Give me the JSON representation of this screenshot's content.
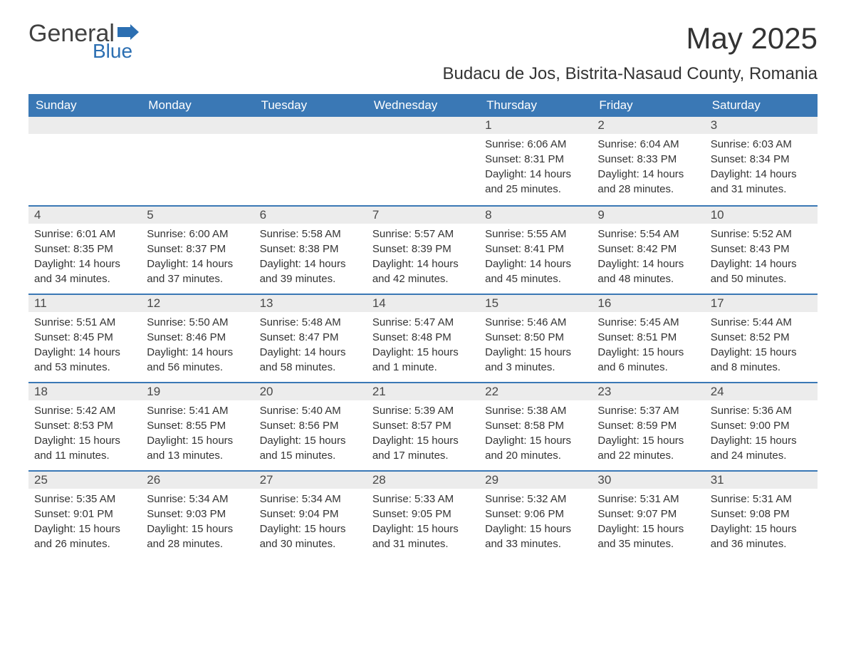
{
  "logo": {
    "text1": "General",
    "text2": "Blue"
  },
  "title": "May 2025",
  "subtitle": "Budacu de Jos, Bistrita-Nasaud County, Romania",
  "colors": {
    "header_bg": "#3a78b5",
    "header_text": "#ffffff",
    "daynum_bg": "#ececec",
    "body_text": "#333333",
    "week_border": "#3a78b5",
    "logo_general": "#414141",
    "logo_blue": "#2c6fb2",
    "background": "#ffffff"
  },
  "typography": {
    "title_fontsize": 42,
    "subtitle_fontsize": 24,
    "dow_fontsize": 17,
    "daynum_fontsize": 17,
    "body_fontsize": 15
  },
  "daysOfWeek": [
    "Sunday",
    "Monday",
    "Tuesday",
    "Wednesday",
    "Thursday",
    "Friday",
    "Saturday"
  ],
  "weeks": [
    [
      {
        "n": "",
        "sunrise": "",
        "sunset": "",
        "daylight": ""
      },
      {
        "n": "",
        "sunrise": "",
        "sunset": "",
        "daylight": ""
      },
      {
        "n": "",
        "sunrise": "",
        "sunset": "",
        "daylight": ""
      },
      {
        "n": "",
        "sunrise": "",
        "sunset": "",
        "daylight": ""
      },
      {
        "n": "1",
        "sunrise": "Sunrise: 6:06 AM",
        "sunset": "Sunset: 8:31 PM",
        "daylight": "Daylight: 14 hours and 25 minutes."
      },
      {
        "n": "2",
        "sunrise": "Sunrise: 6:04 AM",
        "sunset": "Sunset: 8:33 PM",
        "daylight": "Daylight: 14 hours and 28 minutes."
      },
      {
        "n": "3",
        "sunrise": "Sunrise: 6:03 AM",
        "sunset": "Sunset: 8:34 PM",
        "daylight": "Daylight: 14 hours and 31 minutes."
      }
    ],
    [
      {
        "n": "4",
        "sunrise": "Sunrise: 6:01 AM",
        "sunset": "Sunset: 8:35 PM",
        "daylight": "Daylight: 14 hours and 34 minutes."
      },
      {
        "n": "5",
        "sunrise": "Sunrise: 6:00 AM",
        "sunset": "Sunset: 8:37 PM",
        "daylight": "Daylight: 14 hours and 37 minutes."
      },
      {
        "n": "6",
        "sunrise": "Sunrise: 5:58 AM",
        "sunset": "Sunset: 8:38 PM",
        "daylight": "Daylight: 14 hours and 39 minutes."
      },
      {
        "n": "7",
        "sunrise": "Sunrise: 5:57 AM",
        "sunset": "Sunset: 8:39 PM",
        "daylight": "Daylight: 14 hours and 42 minutes."
      },
      {
        "n": "8",
        "sunrise": "Sunrise: 5:55 AM",
        "sunset": "Sunset: 8:41 PM",
        "daylight": "Daylight: 14 hours and 45 minutes."
      },
      {
        "n": "9",
        "sunrise": "Sunrise: 5:54 AM",
        "sunset": "Sunset: 8:42 PM",
        "daylight": "Daylight: 14 hours and 48 minutes."
      },
      {
        "n": "10",
        "sunrise": "Sunrise: 5:52 AM",
        "sunset": "Sunset: 8:43 PM",
        "daylight": "Daylight: 14 hours and 50 minutes."
      }
    ],
    [
      {
        "n": "11",
        "sunrise": "Sunrise: 5:51 AM",
        "sunset": "Sunset: 8:45 PM",
        "daylight": "Daylight: 14 hours and 53 minutes."
      },
      {
        "n": "12",
        "sunrise": "Sunrise: 5:50 AM",
        "sunset": "Sunset: 8:46 PM",
        "daylight": "Daylight: 14 hours and 56 minutes."
      },
      {
        "n": "13",
        "sunrise": "Sunrise: 5:48 AM",
        "sunset": "Sunset: 8:47 PM",
        "daylight": "Daylight: 14 hours and 58 minutes."
      },
      {
        "n": "14",
        "sunrise": "Sunrise: 5:47 AM",
        "sunset": "Sunset: 8:48 PM",
        "daylight": "Daylight: 15 hours and 1 minute."
      },
      {
        "n": "15",
        "sunrise": "Sunrise: 5:46 AM",
        "sunset": "Sunset: 8:50 PM",
        "daylight": "Daylight: 15 hours and 3 minutes."
      },
      {
        "n": "16",
        "sunrise": "Sunrise: 5:45 AM",
        "sunset": "Sunset: 8:51 PM",
        "daylight": "Daylight: 15 hours and 6 minutes."
      },
      {
        "n": "17",
        "sunrise": "Sunrise: 5:44 AM",
        "sunset": "Sunset: 8:52 PM",
        "daylight": "Daylight: 15 hours and 8 minutes."
      }
    ],
    [
      {
        "n": "18",
        "sunrise": "Sunrise: 5:42 AM",
        "sunset": "Sunset: 8:53 PM",
        "daylight": "Daylight: 15 hours and 11 minutes."
      },
      {
        "n": "19",
        "sunrise": "Sunrise: 5:41 AM",
        "sunset": "Sunset: 8:55 PM",
        "daylight": "Daylight: 15 hours and 13 minutes."
      },
      {
        "n": "20",
        "sunrise": "Sunrise: 5:40 AM",
        "sunset": "Sunset: 8:56 PM",
        "daylight": "Daylight: 15 hours and 15 minutes."
      },
      {
        "n": "21",
        "sunrise": "Sunrise: 5:39 AM",
        "sunset": "Sunset: 8:57 PM",
        "daylight": "Daylight: 15 hours and 17 minutes."
      },
      {
        "n": "22",
        "sunrise": "Sunrise: 5:38 AM",
        "sunset": "Sunset: 8:58 PM",
        "daylight": "Daylight: 15 hours and 20 minutes."
      },
      {
        "n": "23",
        "sunrise": "Sunrise: 5:37 AM",
        "sunset": "Sunset: 8:59 PM",
        "daylight": "Daylight: 15 hours and 22 minutes."
      },
      {
        "n": "24",
        "sunrise": "Sunrise: 5:36 AM",
        "sunset": "Sunset: 9:00 PM",
        "daylight": "Daylight: 15 hours and 24 minutes."
      }
    ],
    [
      {
        "n": "25",
        "sunrise": "Sunrise: 5:35 AM",
        "sunset": "Sunset: 9:01 PM",
        "daylight": "Daylight: 15 hours and 26 minutes."
      },
      {
        "n": "26",
        "sunrise": "Sunrise: 5:34 AM",
        "sunset": "Sunset: 9:03 PM",
        "daylight": "Daylight: 15 hours and 28 minutes."
      },
      {
        "n": "27",
        "sunrise": "Sunrise: 5:34 AM",
        "sunset": "Sunset: 9:04 PM",
        "daylight": "Daylight: 15 hours and 30 minutes."
      },
      {
        "n": "28",
        "sunrise": "Sunrise: 5:33 AM",
        "sunset": "Sunset: 9:05 PM",
        "daylight": "Daylight: 15 hours and 31 minutes."
      },
      {
        "n": "29",
        "sunrise": "Sunrise: 5:32 AM",
        "sunset": "Sunset: 9:06 PM",
        "daylight": "Daylight: 15 hours and 33 minutes."
      },
      {
        "n": "30",
        "sunrise": "Sunrise: 5:31 AM",
        "sunset": "Sunset: 9:07 PM",
        "daylight": "Daylight: 15 hours and 35 minutes."
      },
      {
        "n": "31",
        "sunrise": "Sunrise: 5:31 AM",
        "sunset": "Sunset: 9:08 PM",
        "daylight": "Daylight: 15 hours and 36 minutes."
      }
    ]
  ]
}
